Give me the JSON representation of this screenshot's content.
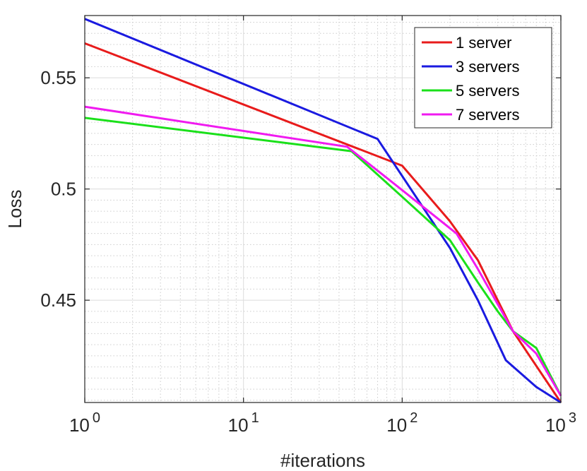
{
  "chart_data": {
    "type": "line",
    "title": "",
    "xlabel": "#iterations",
    "ylabel": "Loss",
    "xscale": "log",
    "xlim": [
      1,
      1000
    ],
    "ylim": [
      0.404,
      0.578
    ],
    "x_ticks": [
      {
        "value": 1,
        "base": "10",
        "exp": "0"
      },
      {
        "value": 10,
        "base": "10",
        "exp": "1"
      },
      {
        "value": 100,
        "base": "10",
        "exp": "2"
      },
      {
        "value": 1000,
        "base": "10",
        "exp": "3"
      }
    ],
    "y_ticks": [
      {
        "value": 0.45,
        "label": "0.45"
      },
      {
        "value": 0.5,
        "label": "0.5"
      },
      {
        "value": 0.55,
        "label": "0.55"
      }
    ],
    "grid": true,
    "legend_position": "top-right",
    "series": [
      {
        "name": "1 server",
        "color": "#e81b1b",
        "x": [
          1,
          100,
          200,
          300,
          500,
          1000
        ],
        "y": [
          0.5655,
          0.5105,
          0.4855,
          0.468,
          0.436,
          0.404
        ]
      },
      {
        "name": "3 servers",
        "color": "#1a1ae0",
        "x": [
          1,
          70,
          200,
          300,
          450,
          700,
          1000
        ],
        "y": [
          0.5765,
          0.5225,
          0.4735,
          0.45,
          0.423,
          0.411,
          0.404
        ]
      },
      {
        "name": "5 servers",
        "color": "#1ae01a",
        "x": [
          1,
          48,
          100,
          200,
          300,
          400,
          500,
          700,
          1000
        ],
        "y": [
          0.532,
          0.517,
          0.4965,
          0.477,
          0.458,
          0.445,
          0.436,
          0.4285,
          0.407
        ]
      },
      {
        "name": "7 servers",
        "color": "#f01af0",
        "x": [
          1,
          45,
          80,
          130,
          220,
          300,
          500,
          700,
          1000
        ],
        "y": [
          0.537,
          0.519,
          0.505,
          0.493,
          0.48,
          0.464,
          0.436,
          0.426,
          0.407
        ]
      }
    ]
  }
}
